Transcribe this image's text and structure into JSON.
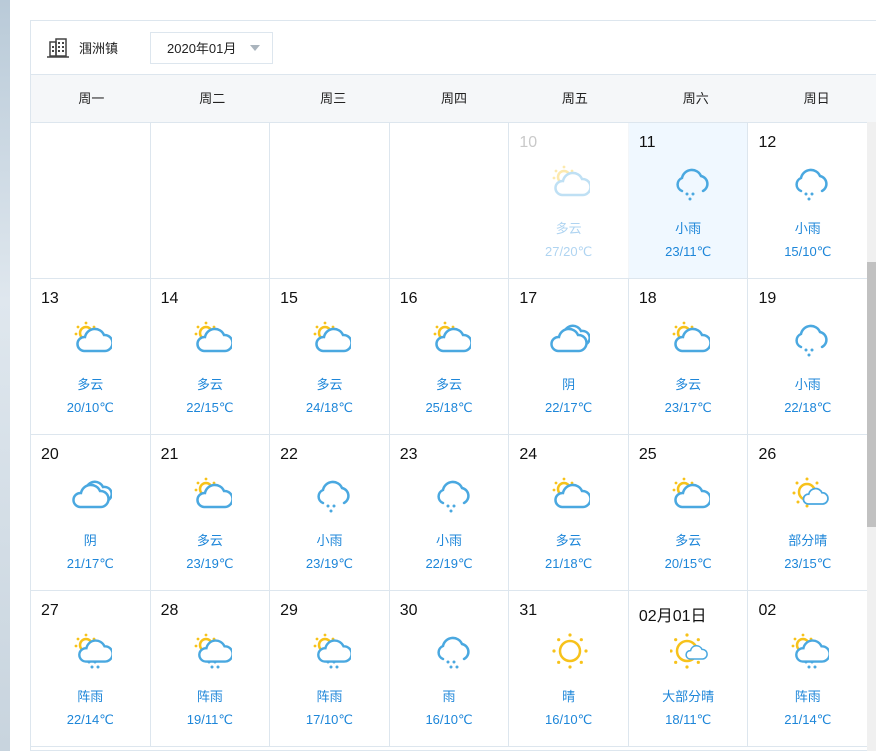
{
  "location": "涠洲镇",
  "month_select": "2020年01月",
  "weekdays": [
    "周一",
    "周二",
    "周三",
    "周四",
    "周五",
    "周六",
    "周日"
  ],
  "colors": {
    "sun": "#f7c21a",
    "cloud": "#4aa8e0",
    "text": "#1d86d9",
    "selected_bg": "#f0f8ff"
  },
  "weeks": [
    [
      null,
      null,
      null,
      null,
      {
        "day": "10",
        "cond": "多云",
        "temp": "27/20℃",
        "icon": "partly-cloudy-icon",
        "past": true
      },
      {
        "day": "11",
        "cond": "小雨",
        "temp": "23/11℃",
        "icon": "light-rain-icon",
        "selected": true
      },
      {
        "day": "12",
        "cond": "小雨",
        "temp": "15/10℃",
        "icon": "light-rain-icon"
      }
    ],
    [
      {
        "day": "13",
        "cond": "多云",
        "temp": "20/10℃",
        "icon": "partly-cloudy-icon"
      },
      {
        "day": "14",
        "cond": "多云",
        "temp": "22/15℃",
        "icon": "partly-cloudy-icon"
      },
      {
        "day": "15",
        "cond": "多云",
        "temp": "24/18℃",
        "icon": "partly-cloudy-icon"
      },
      {
        "day": "16",
        "cond": "多云",
        "temp": "25/18℃",
        "icon": "partly-cloudy-icon"
      },
      {
        "day": "17",
        "cond": "阴",
        "temp": "22/17℃",
        "icon": "overcast-icon"
      },
      {
        "day": "18",
        "cond": "多云",
        "temp": "23/17℃",
        "icon": "partly-cloudy-icon"
      },
      {
        "day": "19",
        "cond": "小雨",
        "temp": "22/18℃",
        "icon": "light-rain-icon"
      }
    ],
    [
      {
        "day": "20",
        "cond": "阴",
        "temp": "21/17℃",
        "icon": "overcast-icon"
      },
      {
        "day": "21",
        "cond": "多云",
        "temp": "23/19℃",
        "icon": "partly-cloudy-icon"
      },
      {
        "day": "22",
        "cond": "小雨",
        "temp": "23/19℃",
        "icon": "light-rain-icon"
      },
      {
        "day": "23",
        "cond": "小雨",
        "temp": "22/19℃",
        "icon": "light-rain-icon"
      },
      {
        "day": "24",
        "cond": "多云",
        "temp": "21/18℃",
        "icon": "partly-cloudy-icon"
      },
      {
        "day": "25",
        "cond": "多云",
        "temp": "20/15℃",
        "icon": "partly-cloudy-icon"
      },
      {
        "day": "26",
        "cond": "部分晴",
        "temp": "23/15℃",
        "icon": "partly-sunny-icon"
      }
    ],
    [
      {
        "day": "27",
        "cond": "阵雨",
        "temp": "22/14℃",
        "icon": "shower-icon"
      },
      {
        "day": "28",
        "cond": "阵雨",
        "temp": "19/11℃",
        "icon": "shower-icon"
      },
      {
        "day": "29",
        "cond": "阵雨",
        "temp": "17/10℃",
        "icon": "shower-icon"
      },
      {
        "day": "30",
        "cond": "雨",
        "temp": "16/10℃",
        "icon": "rain-icon"
      },
      {
        "day": "31",
        "cond": "晴",
        "temp": "16/10℃",
        "icon": "sunny-icon"
      },
      {
        "day": "02月01日",
        "cond": "大部分晴",
        "temp": "18/11℃",
        "icon": "mostly-sunny-icon"
      },
      {
        "day": "02",
        "cond": "阵雨",
        "temp": "21/14℃",
        "icon": "shower-icon"
      }
    ]
  ]
}
